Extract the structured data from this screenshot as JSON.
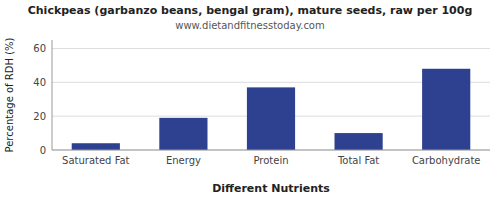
{
  "chart_data": {
    "type": "bar",
    "title": "Chickpeas (garbanzo beans, bengal gram), mature seeds, raw per 100g",
    "subtitle": "www.dietandfitnesstoday.com",
    "categories": [
      "Saturated Fat",
      "Energy",
      "Protein",
      "Total Fat",
      "Carbohydrate"
    ],
    "values": [
      4,
      19,
      37,
      10,
      48
    ],
    "color": "#2e4090",
    "xlabel": "Different Nutrients",
    "ylabel": "Percentage of RDH (%)",
    "ylim": [
      0,
      65
    ],
    "yticks": [
      0,
      20,
      40,
      60
    ],
    "grid": true
  }
}
